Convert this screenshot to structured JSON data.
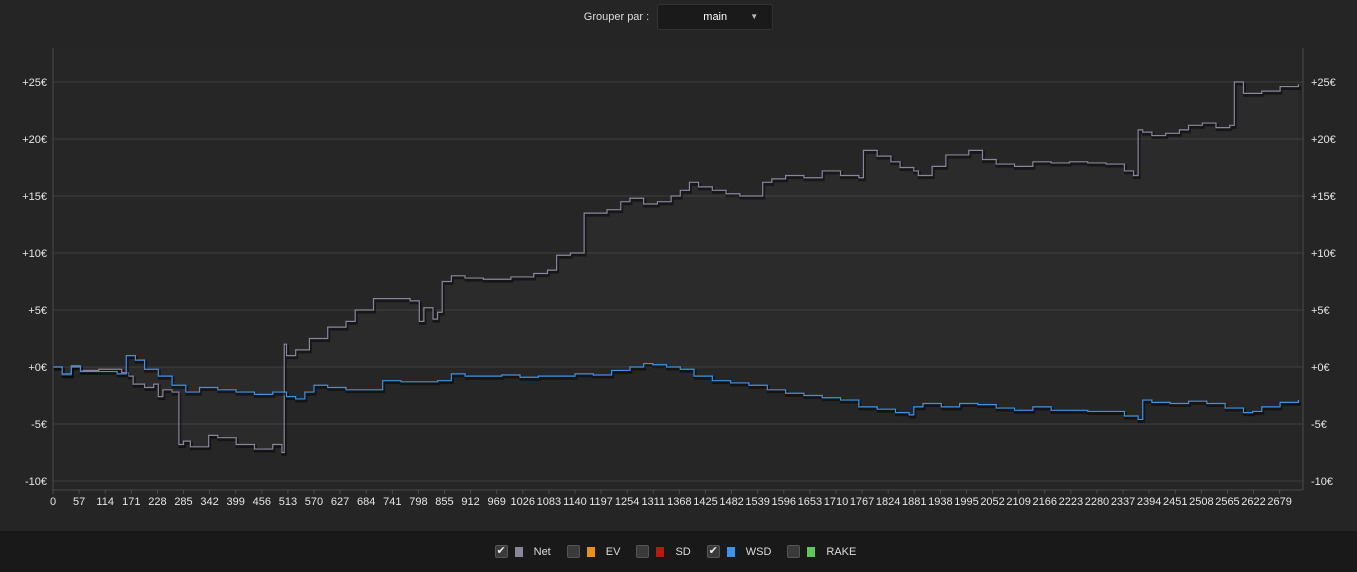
{
  "toolbar": {
    "group_label": "Grouper par :",
    "group_value": "main",
    "chevron_icon": "triangle-down-icon"
  },
  "legend": [
    {
      "label": "Net",
      "checked": true,
      "color": "#8a869c"
    },
    {
      "label": "EV",
      "checked": false,
      "color": "#e8901a"
    },
    {
      "label": "SD",
      "checked": false,
      "color": "#b21f12"
    },
    {
      "label": "WSD",
      "checked": true,
      "color": "#3c93e8"
    },
    {
      "label": "RAKE",
      "checked": false,
      "color": "#5fc75a"
    }
  ],
  "chart_data": {
    "type": "line",
    "xlabel": "",
    "ylabel": "",
    "xlim": [
      0,
      2730
    ],
    "ylim": [
      -10,
      25
    ],
    "y_ticks": [
      -10,
      -5,
      0,
      5,
      10,
      15,
      20,
      25
    ],
    "y_tick_labels": [
      "-10€",
      "-5€",
      "+0€",
      "+5€",
      "+10€",
      "+15€",
      "+20€",
      "+25€"
    ],
    "x_ticks": [
      0,
      57,
      114,
      171,
      228,
      285,
      342,
      399,
      456,
      513,
      570,
      627,
      684,
      741,
      798,
      855,
      912,
      969,
      1026,
      1083,
      1140,
      1197,
      1254,
      1311,
      1368,
      1425,
      1482,
      1539,
      1596,
      1653,
      1710,
      1767,
      1824,
      1881,
      1938,
      1995,
      2052,
      2109,
      2166,
      2223,
      2280,
      2337,
      2394,
      2451,
      2508,
      2565,
      2622,
      2679
    ],
    "grid": true,
    "series": [
      {
        "name": "Net",
        "color": "#8a869c",
        "x": [
          0,
          20,
          40,
          60,
          100,
          150,
          165,
          175,
          200,
          220,
          230,
          240,
          260,
          275,
          285,
          300,
          340,
          360,
          400,
          440,
          480,
          500,
          505,
          510,
          530,
          560,
          600,
          640,
          660,
          700,
          740,
          780,
          800,
          810,
          830,
          840,
          850,
          870,
          900,
          940,
          1000,
          1050,
          1080,
          1100,
          1130,
          1160,
          1180,
          1190,
          1210,
          1240,
          1260,
          1290,
          1320,
          1350,
          1370,
          1390,
          1410,
          1440,
          1470,
          1500,
          1530,
          1550,
          1570,
          1600,
          1640,
          1680,
          1720,
          1760,
          1770,
          1800,
          1830,
          1850,
          1880,
          1890,
          1920,
          1950,
          2000,
          2030,
          2060,
          2100,
          2140,
          2180,
          2220,
          2260,
          2300,
          2340,
          2360,
          2370,
          2380,
          2400,
          2430,
          2460,
          2480,
          2510,
          2540,
          2570,
          2580,
          2600,
          2640,
          2680,
          2720
        ],
        "values": [
          0,
          -0.7,
          0.1,
          -0.3,
          -0.2,
          -0.5,
          -0.8,
          -1.5,
          -1.8,
          -1.5,
          -2.6,
          -2.0,
          -2.2,
          -6.8,
          -6.5,
          -7.0,
          -6.0,
          -6.2,
          -6.8,
          -7.2,
          -6.8,
          -7.5,
          2.0,
          1.0,
          1.5,
          2.5,
          3.5,
          4.0,
          5.0,
          6.0,
          6.0,
          5.8,
          4.0,
          5.2,
          4.2,
          4.8,
          7.5,
          8.0,
          7.8,
          7.7,
          7.9,
          8.2,
          8.5,
          9.8,
          10.0,
          13.5,
          13.5,
          13.5,
          13.8,
          14.5,
          14.8,
          14.3,
          14.5,
          15.0,
          15.5,
          16.2,
          15.8,
          15.5,
          15.2,
          15.0,
          15.0,
          16.2,
          16.5,
          16.8,
          16.6,
          17.2,
          16.8,
          16.6,
          19.0,
          18.5,
          18.0,
          17.5,
          17.2,
          16.8,
          17.6,
          18.6,
          19.0,
          18.2,
          17.8,
          17.6,
          18.0,
          17.9,
          18.0,
          17.9,
          17.8,
          17.2,
          16.8,
          20.8,
          20.6,
          20.3,
          20.5,
          20.8,
          21.2,
          21.4,
          21.0,
          21.2,
          25.0,
          24.0,
          24.2,
          24.6,
          24.8
        ]
      },
      {
        "name": "WSD",
        "color": "#3c93e8",
        "x": [
          0,
          20,
          40,
          60,
          100,
          140,
          160,
          180,
          200,
          230,
          260,
          290,
          320,
          360,
          400,
          440,
          480,
          510,
          530,
          550,
          570,
          600,
          640,
          680,
          720,
          760,
          800,
          840,
          870,
          900,
          940,
          980,
          1020,
          1060,
          1100,
          1140,
          1180,
          1220,
          1260,
          1290,
          1310,
          1340,
          1370,
          1400,
          1440,
          1480,
          1520,
          1560,
          1600,
          1640,
          1680,
          1720,
          1760,
          1800,
          1840,
          1870,
          1880,
          1900,
          1940,
          1980,
          2020,
          2060,
          2100,
          2140,
          2180,
          2220,
          2260,
          2300,
          2340,
          2370,
          2380,
          2400,
          2440,
          2480,
          2520,
          2560,
          2600,
          2620,
          2640,
          2680,
          2720
        ],
        "values": [
          0,
          -0.6,
          0.0,
          -0.4,
          -0.4,
          -0.6,
          1.0,
          0.6,
          -0.2,
          -0.8,
          -1.6,
          -2.2,
          -1.8,
          -2.0,
          -2.2,
          -2.4,
          -2.2,
          -2.6,
          -2.8,
          -2.2,
          -1.6,
          -1.8,
          -2.0,
          -2.0,
          -1.2,
          -1.3,
          -1.3,
          -1.2,
          -0.6,
          -0.8,
          -0.8,
          -0.7,
          -0.9,
          -0.8,
          -0.8,
          -0.6,
          -0.7,
          -0.3,
          0.0,
          0.3,
          0.2,
          0.0,
          -0.2,
          -0.8,
          -1.2,
          -1.4,
          -1.6,
          -2.0,
          -2.3,
          -2.5,
          -2.7,
          -2.9,
          -3.5,
          -3.7,
          -4.0,
          -4.2,
          -3.5,
          -3.2,
          -3.5,
          -3.2,
          -3.3,
          -3.6,
          -3.8,
          -3.5,
          -3.8,
          -3.8,
          -3.9,
          -3.9,
          -4.3,
          -4.6,
          -2.9,
          -3.1,
          -3.2,
          -3.0,
          -3.2,
          -3.6,
          -4.0,
          -3.9,
          -3.5,
          -3.1,
          -2.9
        ]
      }
    ]
  }
}
